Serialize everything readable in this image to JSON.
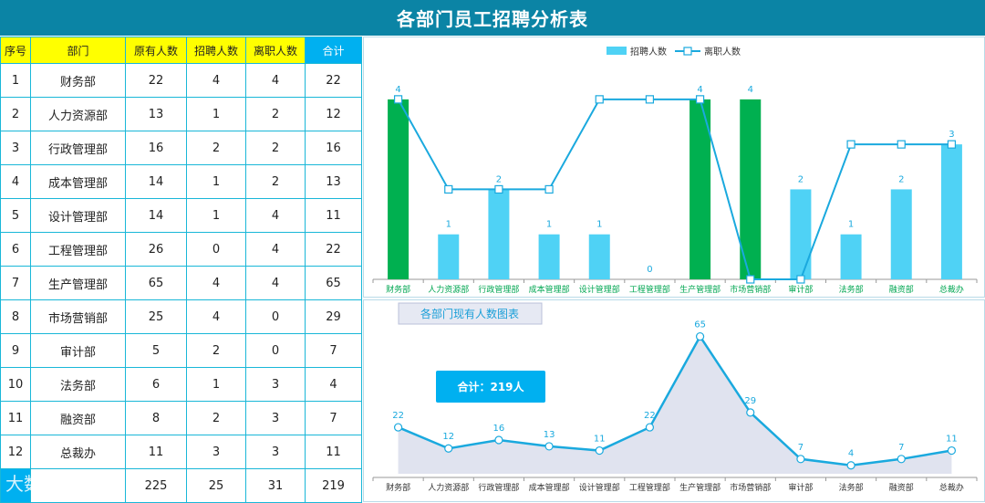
{
  "title": "各部门员工招聘分析表",
  "table": {
    "headers": [
      "序号",
      "部门",
      "原有人数",
      "招聘人数",
      "离职人数",
      "合计"
    ],
    "rows": [
      [
        "1",
        "财务部",
        "22",
        "4",
        "4",
        "22"
      ],
      [
        "2",
        "人力资源部",
        "13",
        "1",
        "2",
        "12"
      ],
      [
        "3",
        "行政管理部",
        "16",
        "2",
        "2",
        "16"
      ],
      [
        "4",
        "成本管理部",
        "14",
        "1",
        "2",
        "13"
      ],
      [
        "5",
        "设计管理部",
        "14",
        "1",
        "4",
        "11"
      ],
      [
        "6",
        "工程管理部",
        "26",
        "0",
        "4",
        "22"
      ],
      [
        "7",
        "生产管理部",
        "65",
        "4",
        "4",
        "65"
      ],
      [
        "8",
        "市场营销部",
        "25",
        "4",
        "0",
        "29"
      ],
      [
        "9",
        "审计部",
        "5",
        "2",
        "0",
        "7"
      ],
      [
        "10",
        "法务部",
        "6",
        "1",
        "3",
        "4"
      ],
      [
        "11",
        "融资部",
        "8",
        "2",
        "3",
        "7"
      ],
      [
        "12",
        "总裁办",
        "11",
        "3",
        "3",
        "11"
      ]
    ],
    "totals": [
      "",
      "",
      "225",
      "25",
      "31",
      "219"
    ]
  },
  "watermark": "大数跨境",
  "colors": {
    "title_bg": "#0b84a5",
    "bar_light": "#4fd2f5",
    "bar_green": "#00b050",
    "line": "#1aa9de",
    "area_fill": "#e0e3ef"
  },
  "chart_data": [
    {
      "type": "bar",
      "categories": [
        "财务部",
        "人力资源部",
        "行政管理部",
        "成本管理部",
        "设计管理部",
        "工程管理部",
        "生产管理部",
        "市场营销部",
        "审计部",
        "法务部",
        "融资部",
        "总裁办"
      ],
      "series": [
        {
          "name": "招聘人数",
          "type": "bar",
          "values": [
            4,
            1,
            2,
            1,
            1,
            0,
            4,
            4,
            2,
            1,
            2,
            3
          ]
        },
        {
          "name": "离职人数",
          "type": "line",
          "values": [
            4,
            2,
            2,
            2,
            4,
            4,
            4,
            0,
            0,
            3,
            3,
            3
          ]
        }
      ],
      "highlighted_bars": [
        0,
        6,
        7
      ],
      "ylim": [
        0,
        4.2
      ],
      "legend": "top-center"
    },
    {
      "type": "area",
      "title": "各部门现有人数图表",
      "total_label": "合计：219人",
      "categories": [
        "财务部",
        "人力资源部",
        "行政管理部",
        "成本管理部",
        "设计管理部",
        "工程管理部",
        "生产管理部",
        "市场营销部",
        "审计部",
        "法务部",
        "融资部",
        "总裁办"
      ],
      "series": [
        {
          "values": [
            22,
            12,
            16,
            13,
            11,
            22,
            65,
            29,
            7,
            4,
            7,
            11
          ]
        }
      ],
      "ylim": [
        0,
        70
      ]
    }
  ]
}
